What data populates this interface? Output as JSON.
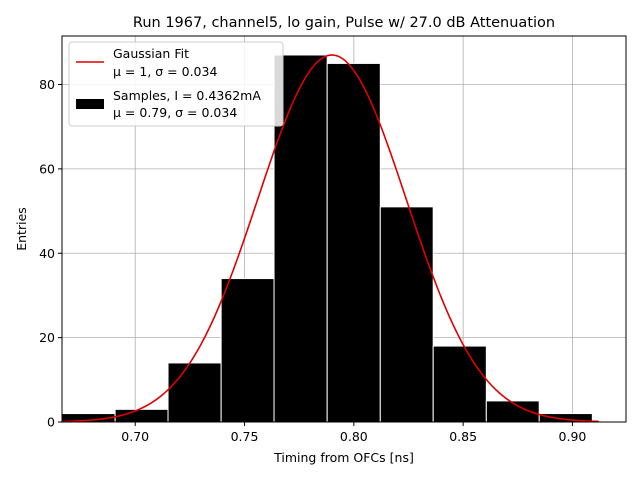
{
  "chart_data": {
    "type": "bar",
    "title": "Run 1967, channel5, lo gain, Pulse w/ 27.0 dB Attenuation",
    "xlabel": "Timing from OFCs [ns]",
    "ylabel": "Entries",
    "xlim": [
      0.6665,
      0.9245
    ],
    "ylim": [
      0,
      91.5
    ],
    "grid": true,
    "legend_position": "top-left",
    "x_ticks": [
      {
        "value": 0.7,
        "label": "0.70"
      },
      {
        "value": 0.75,
        "label": "0.75"
      },
      {
        "value": 0.8,
        "label": "0.80"
      },
      {
        "value": 0.85,
        "label": "0.85"
      },
      {
        "value": 0.9,
        "label": "0.90"
      }
    ],
    "y_ticks": [
      {
        "value": 0,
        "label": "0"
      },
      {
        "value": 20,
        "label": "20"
      },
      {
        "value": 40,
        "label": "40"
      },
      {
        "value": 60,
        "label": "60"
      },
      {
        "value": 80,
        "label": "80"
      }
    ],
    "bin_edges": [
      0.6665,
      0.6908,
      0.715,
      0.7393,
      0.7635,
      0.7878,
      0.8121,
      0.8363,
      0.8606,
      0.8848,
      0.9091
    ],
    "values": [
      2,
      3,
      14,
      34,
      87,
      85,
      51,
      18,
      5,
      2
    ],
    "fit": {
      "mu": 0.79,
      "sigma": 0.034,
      "amplitude": 87,
      "x_range": [
        0.6665,
        0.912
      ],
      "color": "#e00000"
    },
    "bar_color": "#000000",
    "bar_edge_color": "#ffffff",
    "legend": [
      {
        "type": "line",
        "line1": "Gaussian Fit",
        "line2": "μ = 1, σ = 0.034"
      },
      {
        "type": "patch",
        "line1": "Samples, I = 0.4362mA",
        "line2": "μ = 0.79, σ = 0.034"
      }
    ]
  }
}
